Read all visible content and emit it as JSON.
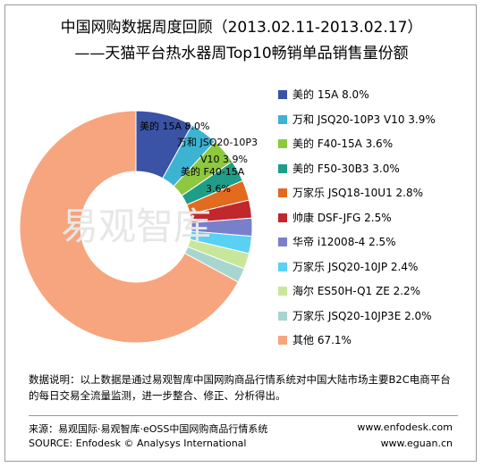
{
  "chart_data": {
    "type": "pie",
    "title": "中国网购数据周度回顾（2013.02.11-2013.02.17）",
    "subtitle": "——天猫平台热水器周Top10畅销单品销售量份额",
    "slices": [
      {
        "name": "美的 15A",
        "value": 8.0,
        "legend_label": "美的 15A  8.0%",
        "color": "#3a53a4"
      },
      {
        "name": "万和 JSQ20-10P3 V10",
        "value": 3.9,
        "legend_label": "万和 JSQ20-10P3 V10  3.9%",
        "color": "#3db3d2"
      },
      {
        "name": "美的 F40-15A",
        "value": 3.6,
        "legend_label": "美的 F40-15A  3.6%",
        "color": "#8dc83f"
      },
      {
        "name": "美的 F50-30B3",
        "value": 3.0,
        "legend_label": "美的 F50-30B3  3.0%",
        "color": "#1f9e87"
      },
      {
        "name": "万家乐 JSQ18-10U1",
        "value": 2.8,
        "legend_label": "万家乐 JSQ18-10U1  2.8%",
        "color": "#e26b1f"
      },
      {
        "name": "帅康 DSF-JFG",
        "value": 2.5,
        "legend_label": "帅康 DSF-JFG  2.5%",
        "color": "#c0282c"
      },
      {
        "name": "华帝 i12008-4",
        "value": 2.5,
        "legend_label": "华帝 i12008-4  2.5%",
        "color": "#7a7fcc"
      },
      {
        "name": "万家乐 JSQ20-10JP",
        "value": 2.4,
        "legend_label": "万家乐 JSQ20-10JP  2.4%",
        "color": "#59d1f2"
      },
      {
        "name": "海尔 ES50H-Q1 ZE",
        "value": 2.2,
        "legend_label": "海尔 ES50H-Q1 ZE  2.2%",
        "color": "#c9e79a"
      },
      {
        "name": "万家乐 JSQ20-10JP3E",
        "value": 2.0,
        "legend_label": "万家乐 JSQ20-10JP3E  2.0%",
        "color": "#a6d6cf"
      },
      {
        "name": "其他",
        "value": 67.1,
        "legend_label": "其他  67.1%",
        "color": "#f7a57f"
      }
    ],
    "data_labels": [
      {
        "text": "美的 15A  8.0%"
      },
      {
        "text": "万和 JSQ20-10P3"
      },
      {
        "text": "V10  3.9%"
      },
      {
        "text": "美的 F40-15A"
      },
      {
        "text": "3.6%"
      }
    ],
    "legend_placement": "right"
  },
  "watermark": "易观智库",
  "note": "数据说明：以上数据是通过易观智库中国网购商品行情系统对中国大陆市场主要B2C电商平台的每日交易全流量监测，进一步整合、修正、分析得出。",
  "source_cn": "来源：易观国际·易观智库·eOSS中国网购商品行情系统",
  "source_en": "SOURCE: Enfodesk © Analysys International",
  "url1": "www.enfodesk.com",
  "url2": "www.eguan.cn"
}
